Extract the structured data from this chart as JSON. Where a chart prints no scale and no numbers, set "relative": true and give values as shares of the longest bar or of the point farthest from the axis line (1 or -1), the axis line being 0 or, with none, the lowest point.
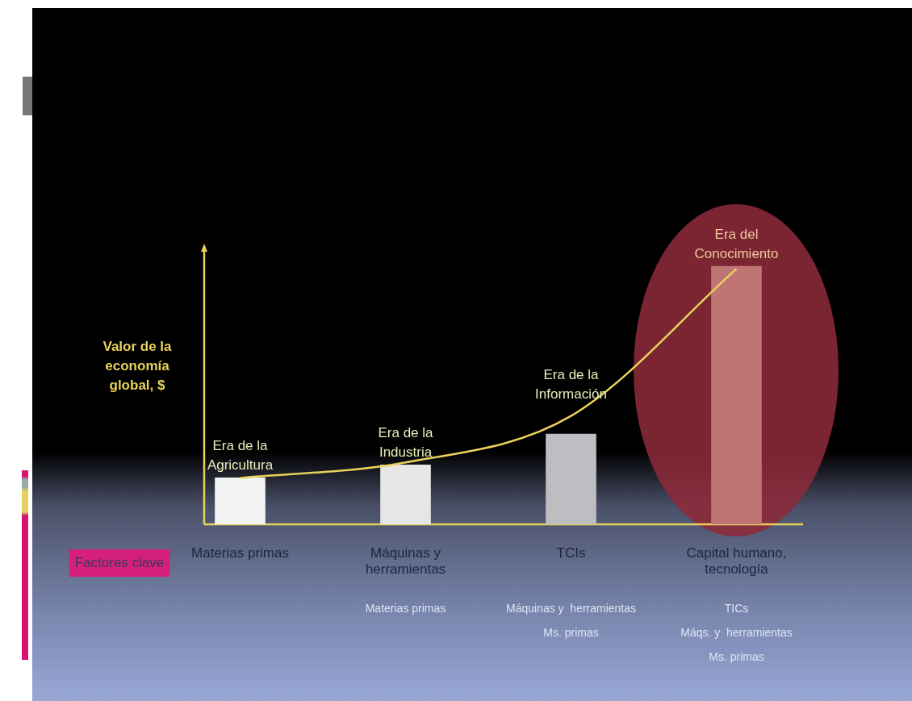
{
  "chart_data": {
    "type": "bar",
    "relative": true,
    "ylabel": "Valor de la economía global, $",
    "categories": [
      "Materias primas",
      "Máquinas y herramientas",
      "TCIs",
      "Capital humano, tecnología"
    ],
    "series": [
      {
        "colors": [
          "#f2f2f2",
          "#e6e6e6",
          "#bdbdc2",
          "#c07575"
        ],
        "values": [
          0.18,
          0.23,
          0.35,
          1.0
        ]
      },
      {
        "type": "line",
        "color": "#e8d25a",
        "values": [
          0.18,
          0.24,
          0.42,
          0.99
        ]
      }
    ],
    "annotations": [
      {
        "text": "Era de la Agricultura",
        "x": "Materias primas",
        "y": 0.18
      },
      {
        "text": "Era de la Industria",
        "x": "Máquinas y herramientas",
        "y": 0.23
      },
      {
        "text": "Era de la Información",
        "x": "TCIs",
        "y": 0.42
      },
      {
        "text": "Era del Conocimiento",
        "x": "Capital humano, tecnología",
        "y": 1.0
      },
      "Factores clave",
      "Materias primas",
      "Máquinas y  herramientas\nMs. primas",
      "TICs\nMáqs. y  herramientas\nMs. primas"
    ],
    "grid": false,
    "legend": false
  }
}
